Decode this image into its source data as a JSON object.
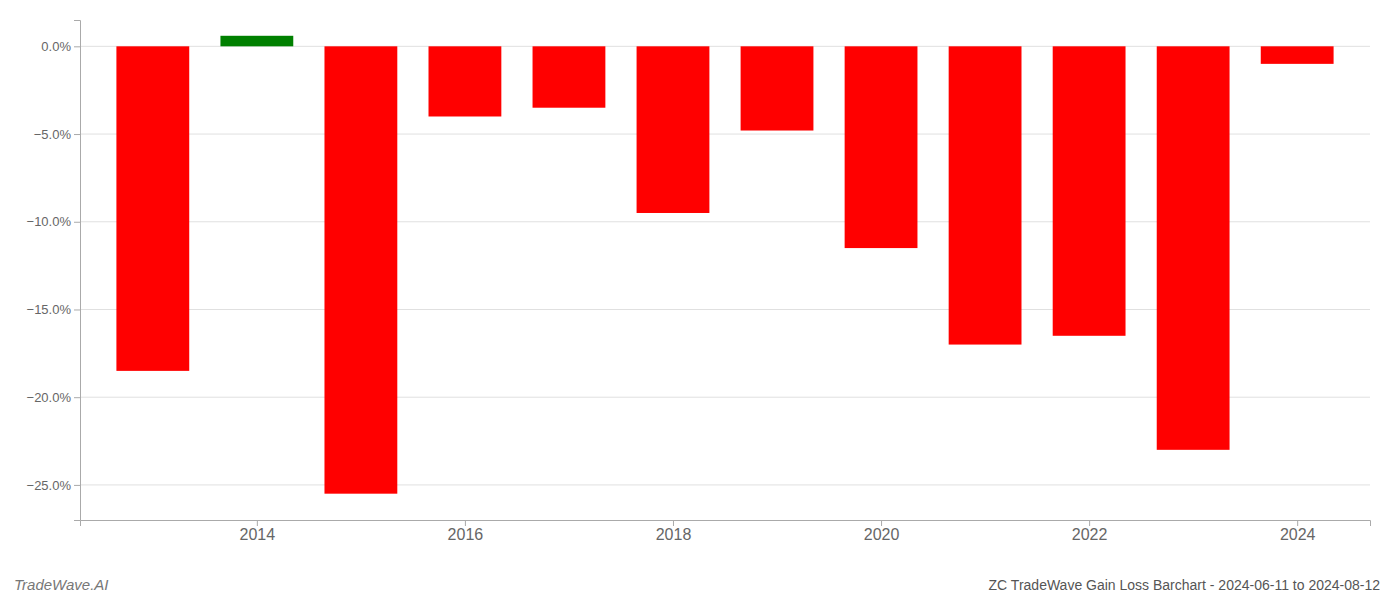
{
  "chart_data": {
    "type": "bar",
    "title": "ZC TradeWave Gain Loss Barchart - 2024-06-11 to 2024-08-12",
    "annotations": [
      "TradeWave.AI"
    ],
    "x": [
      2013,
      2014,
      2015,
      2016,
      2017,
      2018,
      2019,
      2020,
      2021,
      2022,
      2023,
      2024
    ],
    "values": [
      -0.185,
      0.006,
      -0.255,
      -0.04,
      -0.035,
      -0.095,
      -0.048,
      -0.115,
      -0.17,
      -0.165,
      -0.23,
      -0.01
    ],
    "colors": [
      "#ff0000",
      "#008000",
      "#ff0000",
      "#ff0000",
      "#ff0000",
      "#ff0000",
      "#ff0000",
      "#ff0000",
      "#ff0000",
      "#ff0000",
      "#ff0000",
      "#ff0000"
    ],
    "xlim": [
      2012.3,
      2024.7
    ],
    "xticks": [
      2014,
      2016,
      2018,
      2020,
      2022,
      2024
    ],
    "ylim": [
      -0.27,
      0.015
    ],
    "yticks": [
      {
        "value": 0.0,
        "label": "0.0%"
      },
      {
        "value": -0.05,
        "label": "−5.0%"
      },
      {
        "value": -0.1,
        "label": "−10.0%"
      },
      {
        "value": -0.15,
        "label": "−15.0%"
      },
      {
        "value": -0.2,
        "label": "−20.0%"
      },
      {
        "value": -0.25,
        "label": "−25.0%"
      }
    ],
    "grid": true
  }
}
